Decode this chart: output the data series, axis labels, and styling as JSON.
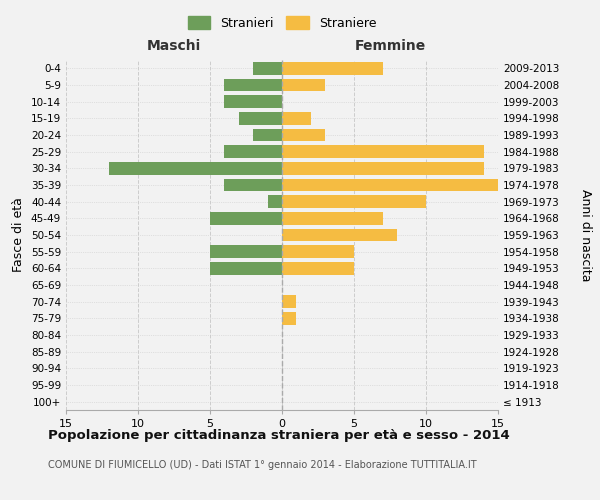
{
  "age_groups": [
    "100+",
    "95-99",
    "90-94",
    "85-89",
    "80-84",
    "75-79",
    "70-74",
    "65-69",
    "60-64",
    "55-59",
    "50-54",
    "45-49",
    "40-44",
    "35-39",
    "30-34",
    "25-29",
    "20-24",
    "15-19",
    "10-14",
    "5-9",
    "0-4"
  ],
  "birth_years": [
    "≤ 1913",
    "1914-1918",
    "1919-1923",
    "1924-1928",
    "1929-1933",
    "1934-1938",
    "1939-1943",
    "1944-1948",
    "1949-1953",
    "1954-1958",
    "1959-1963",
    "1964-1968",
    "1969-1973",
    "1974-1978",
    "1979-1983",
    "1984-1988",
    "1989-1993",
    "1994-1998",
    "1999-2003",
    "2004-2008",
    "2009-2013"
  ],
  "maschi": [
    0,
    0,
    0,
    0,
    0,
    0,
    0,
    0,
    5,
    5,
    0,
    5,
    1,
    4,
    12,
    4,
    2,
    3,
    4,
    4,
    2
  ],
  "femmine": [
    0,
    0,
    0,
    0,
    0,
    1,
    1,
    0,
    5,
    5,
    8,
    7,
    10,
    15,
    14,
    14,
    3,
    2,
    0,
    3,
    7
  ],
  "maschi_color": "#6d9e5a",
  "femmine_color": "#f5bc42",
  "bg_color": "#f2f2f2",
  "grid_color": "#cccccc",
  "title": "Popolazione per cittadinanza straniera per età e sesso - 2014",
  "subtitle": "COMUNE DI FIUMICELLO (UD) - Dati ISTAT 1° gennaio 2014 - Elaborazione TUTTITALIA.IT",
  "ylabel_left": "Fasce di età",
  "ylabel_right": "Anni di nascita",
  "xlabel_left": "Maschi",
  "xlabel_top_right": "Femmine",
  "legend_maschi": "Stranieri",
  "legend_femmine": "Straniere",
  "xlim": 15
}
